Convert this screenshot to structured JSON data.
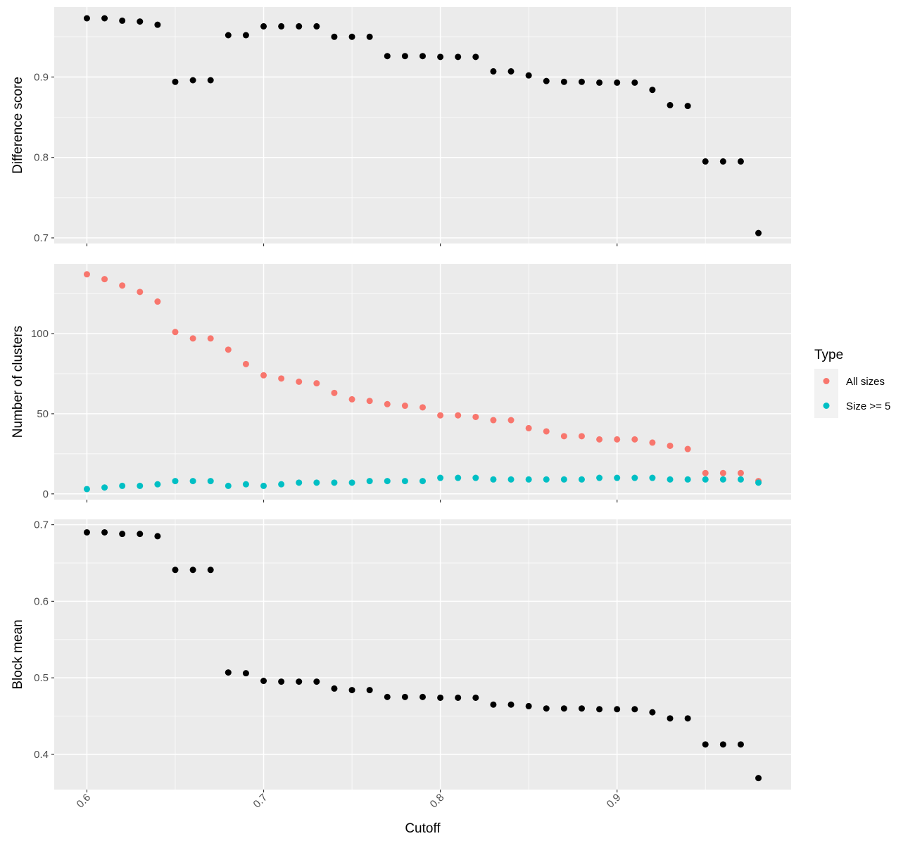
{
  "chart_data": {
    "type": "scatter",
    "xlabel": "Cutoff",
    "x_ticks": [
      0.6,
      0.7,
      0.8,
      0.9
    ],
    "x_tick_labels": [
      "0.6",
      "0.7",
      "0.8",
      "0.9"
    ],
    "xlim": [
      0.5815,
      0.9985
    ],
    "x": [
      0.6,
      0.61,
      0.62,
      0.63,
      0.64,
      0.65,
      0.66,
      0.67,
      0.68,
      0.69,
      0.7,
      0.71,
      0.72,
      0.73,
      0.74,
      0.75,
      0.76,
      0.77,
      0.78,
      0.79,
      0.8,
      0.81,
      0.82,
      0.83,
      0.84,
      0.85,
      0.86,
      0.87,
      0.88,
      0.89,
      0.9,
      0.91,
      0.92,
      0.93,
      0.94,
      0.95,
      0.96,
      0.97,
      0.98
    ],
    "grid": true,
    "panels": [
      {
        "ylabel": "Difference score",
        "ylim": [
          0.693,
          0.987
        ],
        "y_ticks": [
          0.7,
          0.8,
          0.9
        ],
        "y_tick_labels": [
          "0.7",
          "0.8",
          "0.9"
        ],
        "series": [
          {
            "color": "#000000",
            "values": [
              0.973,
              0.973,
              0.97,
              0.969,
              0.965,
              0.894,
              0.896,
              0.896,
              0.952,
              0.952,
              0.963,
              0.963,
              0.963,
              0.963,
              0.95,
              0.95,
              0.95,
              0.926,
              0.926,
              0.926,
              0.925,
              0.925,
              0.925,
              0.907,
              0.907,
              0.902,
              0.895,
              0.894,
              0.894,
              0.893,
              0.893,
              0.893,
              0.884,
              0.865,
              0.864,
              0.795,
              0.795,
              0.795,
              0.706
            ]
          }
        ]
      },
      {
        "ylabel": "Number of clusters",
        "ylim": [
          -3.6,
          143.5
        ],
        "y_ticks": [
          0,
          50,
          100
        ],
        "y_tick_labels": [
          "0",
          "50",
          "100"
        ],
        "series": [
          {
            "name": "All sizes",
            "color": "#F8766D",
            "values": [
              137,
              134,
              130,
              126,
              120,
              101,
              97,
              97,
              90,
              81,
              74,
              72,
              70,
              69,
              63,
              59,
              58,
              56,
              55,
              54,
              49,
              49,
              48,
              46,
              46,
              41,
              39,
              36,
              36,
              34,
              34,
              34,
              32,
              30,
              28,
              13,
              13,
              13,
              8
            ]
          },
          {
            "name": "Size >= 5",
            "color": "#00BFC4",
            "values": [
              3,
              4,
              5,
              5,
              6,
              8,
              8,
              8,
              5,
              6,
              5,
              6,
              7,
              7,
              7,
              7,
              8,
              8,
              8,
              8,
              10,
              10,
              10,
              9,
              9,
              9,
              9,
              9,
              9,
              10,
              10,
              10,
              10,
              9,
              9,
              9,
              9,
              9,
              7
            ]
          }
        ]
      },
      {
        "ylabel": "Block mean",
        "ylim": [
          0.354,
          0.707
        ],
        "y_ticks": [
          0.4,
          0.5,
          0.6,
          0.7
        ],
        "y_tick_labels": [
          "0.4",
          "0.5",
          "0.6",
          "0.7"
        ],
        "series": [
          {
            "color": "#000000",
            "values": [
              0.69,
              0.69,
              0.688,
              0.688,
              0.685,
              0.641,
              0.641,
              0.641,
              0.507,
              0.506,
              0.496,
              0.495,
              0.495,
              0.495,
              0.486,
              0.484,
              0.484,
              0.475,
              0.475,
              0.475,
              0.474,
              0.474,
              0.474,
              0.465,
              0.465,
              0.463,
              0.46,
              0.46,
              0.46,
              0.459,
              0.459,
              0.459,
              0.455,
              0.447,
              0.447,
              0.413,
              0.413,
              0.413,
              0.369
            ]
          }
        ]
      }
    ],
    "legend": {
      "title": "Type",
      "position": "right",
      "items": [
        {
          "label": "All sizes",
          "color": "#F8766D"
        },
        {
          "label": "Size >= 5",
          "color": "#00BFC4"
        }
      ]
    }
  }
}
